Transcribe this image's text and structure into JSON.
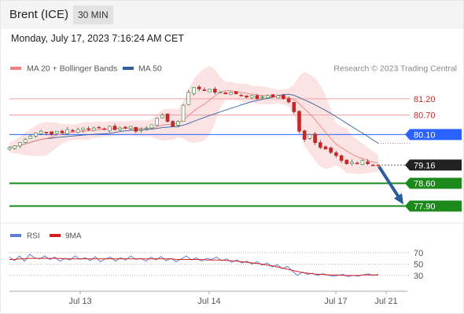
{
  "header": {
    "instrument": "Brent (ICE)",
    "timeframe": "30 MIN"
  },
  "timestamp": "Monday, July 17, 2023 7:16:24 AM CET",
  "legend": [
    {
      "label": "MA 20 + Bollinger Bands",
      "color": "#f08080"
    },
    {
      "label": "MA 50",
      "color": "#2f5f9e"
    }
  ],
  "copyright": "Research © 2023 Trading Central",
  "chart_data": [
    {
      "type": "candlestick",
      "y_range": [
        77.5,
        81.8
      ],
      "x_ticks": [
        "Jul 13",
        "Jul 14",
        "Jul 17",
        "Jul 21"
      ],
      "colors": {
        "up": "#2e7d32",
        "down": "#c62828",
        "ma20": "#f08080",
        "ma50": "#2f5f9e",
        "band_fill": "#fbdcdc"
      },
      "resistance": [
        81.2,
        80.7
      ],
      "pivot": 80.1,
      "current": 79.16,
      "supports": [
        78.6,
        77.9
      ],
      "level_labels": [
        "81.20",
        "80.70",
        "80.10",
        "79.16",
        "78.60",
        "77.90"
      ],
      "forecast": {
        "from": 79.16,
        "to": 77.9,
        "direction": "down"
      },
      "close_path": [
        79.7,
        79.75,
        79.85,
        79.95,
        80.05,
        80.15,
        80.2,
        80.15,
        80.1,
        80.2,
        80.15,
        80.25,
        80.2,
        80.25,
        80.3,
        80.25,
        80.3,
        80.3,
        80.25,
        80.35,
        80.25,
        80.3,
        80.3,
        80.35,
        80.2,
        80.25,
        80.3,
        80.4,
        80.6,
        80.7,
        80.5,
        80.35,
        80.5,
        81.0,
        81.4,
        81.55,
        81.5,
        81.45,
        81.5,
        81.4,
        81.4,
        81.35,
        81.4,
        81.35,
        81.3,
        81.25,
        81.3,
        81.2,
        81.25,
        81.3,
        81.25,
        81.3,
        81.2,
        81.1,
        80.8,
        80.2,
        79.95,
        80.1,
        79.85,
        79.7,
        79.65,
        79.55,
        79.45,
        79.3,
        79.2,
        79.25,
        79.2,
        79.3,
        79.2,
        79.15,
        79.16
      ]
    },
    {
      "type": "line",
      "series": [
        {
          "name": "RSI",
          "color": "#5b7fd6"
        },
        {
          "name": "9MA",
          "color": "#d81e1e"
        }
      ],
      "y_ticks": [
        70,
        50,
        30
      ],
      "y_range": [
        8,
        82
      ],
      "rsi": [
        62,
        56,
        64,
        55,
        67,
        61,
        59,
        64,
        58,
        62,
        55,
        60,
        57,
        64,
        58,
        61,
        56,
        63,
        54,
        59,
        62,
        55,
        61,
        57,
        64,
        58,
        60,
        55,
        62,
        57,
        63,
        56,
        60,
        54,
        59,
        64,
        57,
        61,
        55,
        60,
        58,
        62,
        56,
        59,
        53,
        57,
        52,
        55,
        50,
        54,
        48,
        52,
        45,
        49,
        42,
        46,
        38,
        30,
        36,
        32,
        34,
        30,
        33,
        31,
        29,
        30,
        32,
        28,
        30,
        29,
        31,
        33,
        30,
        32
      ],
      "ma9": [
        58,
        58,
        59,
        59,
        60,
        60,
        60,
        60,
        60,
        60,
        60,
        59,
        59,
        59,
        59,
        59,
        59,
        59,
        59,
        59,
        59,
        59,
        59,
        59,
        59,
        59,
        59,
        59,
        59,
        59,
        59,
        59,
        59,
        58,
        58,
        58,
        58,
        58,
        58,
        57,
        57,
        57,
        57,
        56,
        56,
        55,
        54,
        53,
        52,
        51,
        50,
        48,
        47,
        45,
        43,
        41,
        39,
        37,
        35,
        34,
        33,
        32,
        32,
        31,
        31,
        31,
        30,
        30,
        30,
        30,
        31,
        31,
        31,
        31
      ]
    }
  ]
}
